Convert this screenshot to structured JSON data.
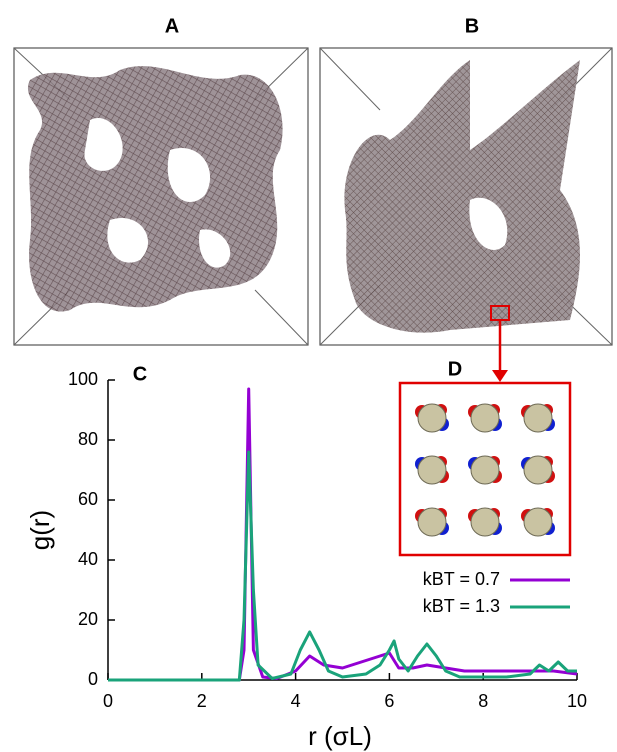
{
  "panels": {
    "a": "A",
    "b": "B",
    "d": "D"
  },
  "chart_data": {
    "type": "line",
    "panel_label": "C",
    "x_label": "r (σL)",
    "y_label": "g(r)",
    "xlim": [
      0,
      10
    ],
    "ylim": [
      0,
      100
    ],
    "xticks": [
      0,
      2,
      4,
      6,
      8,
      10
    ],
    "yticks": [
      0,
      20,
      40,
      60,
      80,
      100
    ],
    "legend": "lower right",
    "series": [
      {
        "name": "kBT = 0.7",
        "color": "#9400d3",
        "x": [
          0,
          2.8,
          2.9,
          3.0,
          3.1,
          3.3,
          3.6,
          4.0,
          4.3,
          4.6,
          5.0,
          5.4,
          5.8,
          6.0,
          6.2,
          6.5,
          6.8,
          7.2,
          7.6,
          8.0,
          8.5,
          9.0,
          9.5,
          10
        ],
        "values": [
          0,
          0,
          10,
          97,
          10,
          1,
          0.5,
          3,
          8,
          5,
          4,
          6,
          8,
          9,
          4,
          4,
          5,
          4,
          3,
          3,
          3,
          3,
          3,
          2
        ]
      },
      {
        "name": "kBT = 1.3",
        "color": "#1aa37a",
        "x": [
          0,
          2.8,
          2.9,
          3.0,
          3.1,
          3.2,
          3.5,
          3.9,
          4.1,
          4.3,
          4.5,
          4.7,
          5.0,
          5.5,
          5.8,
          6.0,
          6.1,
          6.2,
          6.4,
          6.6,
          6.8,
          7.0,
          7.2,
          7.5,
          8.0,
          8.5,
          9.0,
          9.2,
          9.4,
          9.6,
          9.8,
          10
        ],
        "values": [
          0,
          0,
          20,
          76,
          30,
          5,
          0.5,
          2,
          10,
          16,
          10,
          3,
          1,
          2,
          5,
          10,
          13,
          7,
          3,
          8,
          12,
          8,
          3,
          1,
          1,
          1,
          2,
          5,
          3,
          6,
          3,
          3
        ]
      }
    ]
  }
}
